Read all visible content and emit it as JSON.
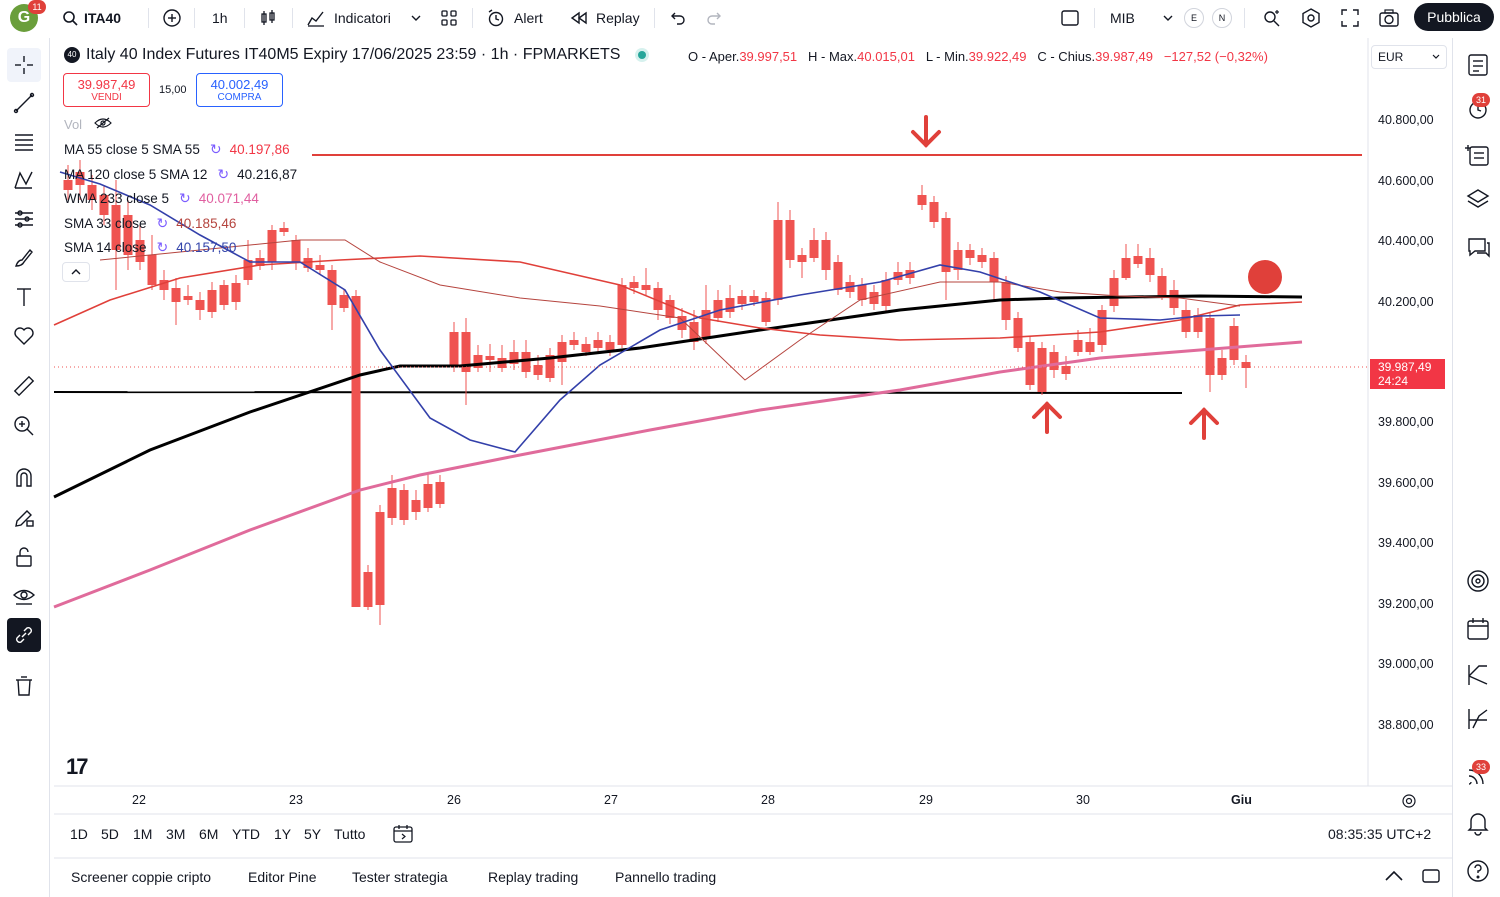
{
  "header": {
    "avatar_letter": "G",
    "avatar_badge": "11",
    "symbol": "ITA40",
    "interval": "1h",
    "indicators_label": "Indicatori",
    "alert_label": "Alert",
    "replay_label": "Replay",
    "layout_name": "MIB",
    "e_label": "E",
    "n_label": "N",
    "publish_label": "Pubblica"
  },
  "chart": {
    "title": "Italy 40 Index Futures IT40M5 Expiry 17/06/2025 23:59 · 1h · FPMARKETS",
    "ohlc": {
      "o_label": "O - Aper.",
      "o_value": "39.997,51",
      "h_label": "H - Max.",
      "h_value": "40.015,01",
      "l_label": "L - Min.",
      "l_value": "39.922,49",
      "c_label": "C - Chius.",
      "c_value": "39.987,49",
      "change": "−127,52 (−0,32%)"
    },
    "sell_price": "39.987,49",
    "sell_label": "VENDI",
    "spread": "15,00",
    "buy_price": "40.002,49",
    "buy_label": "COMPRA",
    "vol_label": "Vol",
    "currency": "EUR",
    "last_price_label": "39.987,49",
    "countdown": "24:24",
    "tv_logo": "17",
    "indicators": [
      {
        "name": "MA 55 close 5 SMA 55",
        "value": "40.197,86",
        "color": "#f23645"
      },
      {
        "name": "MA 120 close 5 SMA 12",
        "value": "40.216,87",
        "color": "#131722"
      },
      {
        "name": "WMA 233 close 5",
        "value": "40.071,44",
        "color": "#e05fa0"
      },
      {
        "name": "SMA 33 close",
        "value": "40.185,46",
        "color": "#b5443e"
      },
      {
        "name": "SMA 14 close",
        "value": "40.157,50",
        "color": "#3344aa"
      }
    ],
    "y_axis": [
      "40.800,00",
      "40.600,00",
      "40.400,00",
      "40.200,00",
      "39.800,00",
      "39.600,00",
      "39.400,00",
      "39.200,00",
      "39.000,00",
      "38.800,00"
    ],
    "x_axis": [
      "22",
      "23",
      "26",
      "27",
      "28",
      "29",
      "30",
      "Giu"
    ],
    "colors": {
      "up": "#26a69a",
      "down": "#ef5350",
      "red_line": "#e0403a",
      "black_line": "#000000",
      "pink_line": "#e06b9b",
      "navy_line": "#3340aa"
    }
  },
  "timeframes": [
    "1D",
    "5D",
    "1M",
    "3M",
    "6M",
    "YTD",
    "1Y",
    "5Y",
    "Tutto"
  ],
  "clock": "08:35:35 UTC+2",
  "bottom_tabs": [
    "Screener coppie cripto",
    "Editor Pine",
    "Tester strategia",
    "Replay trading",
    "Pannello trading"
  ],
  "right_badges": {
    "alerts": "31",
    "notifications": "33"
  }
}
